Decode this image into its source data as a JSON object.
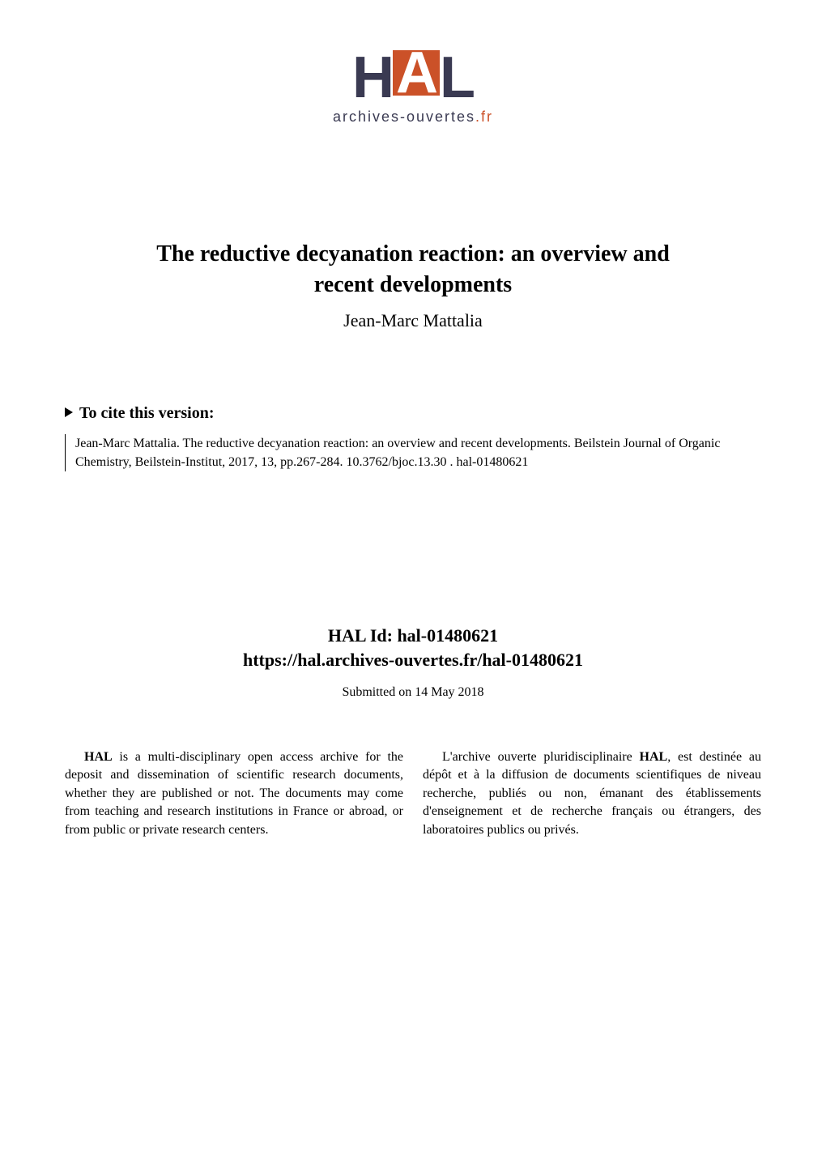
{
  "logo": {
    "text_h": "H",
    "text_a": "A",
    "text_l": "L",
    "subtitle": "archives-ouvertes",
    "subtitle_suffix": ".fr",
    "colors": {
      "logo_text": "#3a3a52",
      "accent": "#cb5128",
      "accent_text": "#ffffff"
    }
  },
  "paper": {
    "title_line1": "The reductive decyanation reaction: an overview and",
    "title_line2": "recent developments",
    "author": "Jean-Marc Mattalia"
  },
  "cite": {
    "heading": "To cite this version:",
    "body": "Jean-Marc Mattalia.  The reductive decyanation reaction:  an overview and recent developments. Beilstein Journal of Organic Chemistry, Beilstein-Institut, 2017, 13, pp.267-284.  10.3762/bjoc.13.30 . hal-01480621"
  },
  "halid": {
    "id_label": "HAL Id: hal-01480621",
    "url": "https://hal.archives-ouvertes.fr/hal-01480621",
    "submitted": "Submitted on 14 May 2018"
  },
  "description": {
    "left": "HAL is a multi-disciplinary open access archive for the deposit and dissemination of scientific research documents, whether they are published or not.  The documents may come from teaching and research institutions in France or abroad, or from public or private research centers.",
    "left_bold_prefix": "HAL",
    "right": "L'archive ouverte pluridisciplinaire HAL, est destinée au dépôt et à la diffusion de documents scientifiques de niveau recherche, publiés ou non, émanant des établissements d'enseignement et de recherche français ou étrangers, des laboratoires publics ou privés.",
    "right_bold_word": "HAL"
  },
  "typography": {
    "title_fontsize": 28,
    "author_fontsize": 22,
    "cite_heading_fontsize": 20,
    "body_fontsize": 16,
    "halid_fontsize": 22
  },
  "colors": {
    "background": "#ffffff",
    "text": "#000000"
  }
}
